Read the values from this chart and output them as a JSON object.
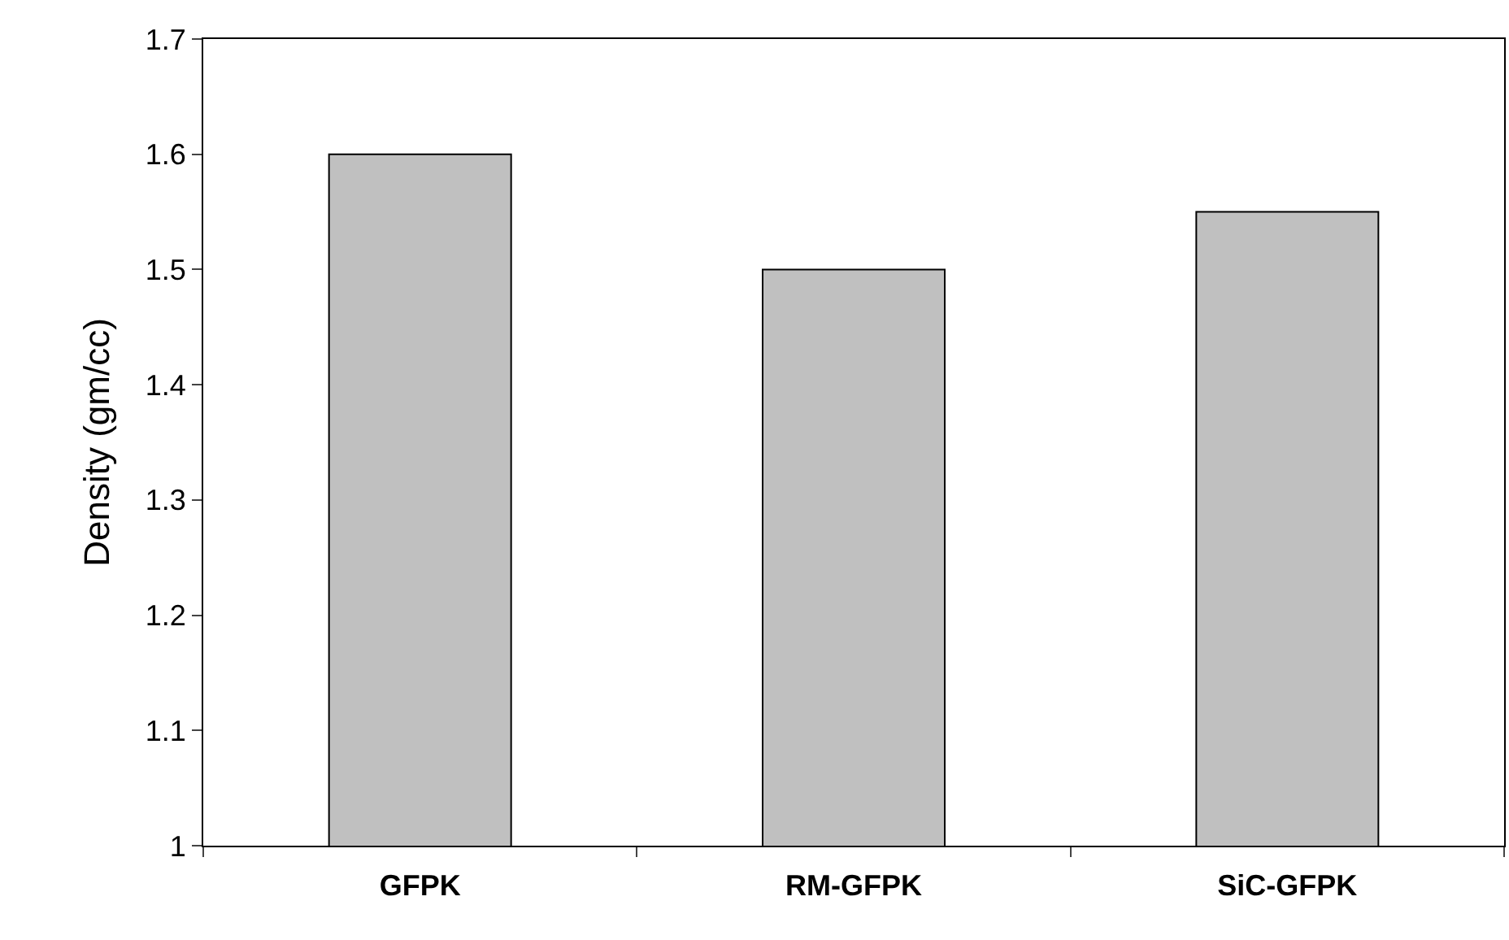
{
  "chart_data": {
    "type": "bar",
    "ylabel": "Density (gm/cc)",
    "categories": [
      "GFPK",
      "RM-GFPK",
      "SiC-GFPK"
    ],
    "values": [
      1.6,
      1.5,
      1.55
    ],
    "color": "#c0c0c0",
    "ylim": [
      1,
      1.7
    ],
    "yticks": [
      1,
      1.1,
      1.2,
      1.3,
      1.4,
      1.5,
      1.6,
      1.7
    ]
  }
}
